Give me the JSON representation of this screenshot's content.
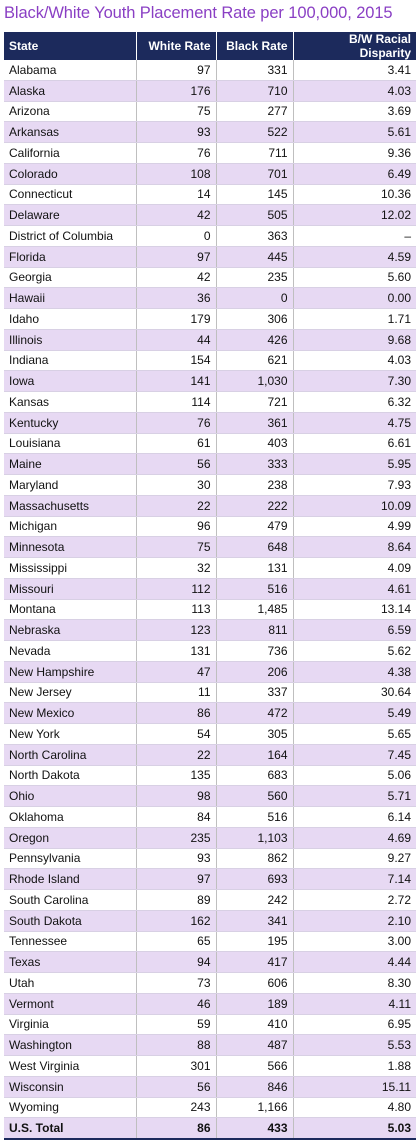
{
  "title": "Black/White Youth Placement Rate per 100,000, 2015",
  "columns": [
    "State",
    "White Rate",
    "Black Rate",
    "B/W Racial Disparity"
  ],
  "rows": [
    [
      "Alabama",
      "97",
      "331",
      "3.41"
    ],
    [
      "Alaska",
      "176",
      "710",
      "4.03"
    ],
    [
      "Arizona",
      "75",
      "277",
      "3.69"
    ],
    [
      "Arkansas",
      "93",
      "522",
      "5.61"
    ],
    [
      "California",
      "76",
      "711",
      "9.36"
    ],
    [
      "Colorado",
      "108",
      "701",
      "6.49"
    ],
    [
      "Connecticut",
      "14",
      "145",
      "10.36"
    ],
    [
      "Delaware",
      "42",
      "505",
      "12.02"
    ],
    [
      "District of Columbia",
      "0",
      "363",
      "–"
    ],
    [
      "Florida",
      "97",
      "445",
      "4.59"
    ],
    [
      "Georgia",
      "42",
      "235",
      "5.60"
    ],
    [
      "Hawaii",
      "36",
      "0",
      "0.00"
    ],
    [
      "Idaho",
      "179",
      "306",
      "1.71"
    ],
    [
      "Illinois",
      "44",
      "426",
      "9.68"
    ],
    [
      "Indiana",
      "154",
      "621",
      "4.03"
    ],
    [
      "Iowa",
      "141",
      "1,030",
      "7.30"
    ],
    [
      "Kansas",
      "114",
      "721",
      "6.32"
    ],
    [
      "Kentucky",
      "76",
      "361",
      "4.75"
    ],
    [
      "Louisiana",
      "61",
      "403",
      "6.61"
    ],
    [
      "Maine",
      "56",
      "333",
      "5.95"
    ],
    [
      "Maryland",
      "30",
      "238",
      "7.93"
    ],
    [
      "Massachusetts",
      "22",
      "222",
      "10.09"
    ],
    [
      "Michigan",
      "96",
      "479",
      "4.99"
    ],
    [
      "Minnesota",
      "75",
      "648",
      "8.64"
    ],
    [
      "Mississippi",
      "32",
      "131",
      "4.09"
    ],
    [
      "Missouri",
      "112",
      "516",
      "4.61"
    ],
    [
      "Montana",
      "113",
      "1,485",
      "13.14"
    ],
    [
      "Nebraska",
      "123",
      "811",
      "6.59"
    ],
    [
      "Nevada",
      "131",
      "736",
      "5.62"
    ],
    [
      "New Hampshire",
      "47",
      "206",
      "4.38"
    ],
    [
      "New Jersey",
      "11",
      "337",
      "30.64"
    ],
    [
      "New Mexico",
      "86",
      "472",
      "5.49"
    ],
    [
      "New York",
      "54",
      "305",
      "5.65"
    ],
    [
      "North Carolina",
      "22",
      "164",
      "7.45"
    ],
    [
      "North Dakota",
      "135",
      "683",
      "5.06"
    ],
    [
      "Ohio",
      "98",
      "560",
      "5.71"
    ],
    [
      "Oklahoma",
      "84",
      "516",
      "6.14"
    ],
    [
      "Oregon",
      "235",
      "1,103",
      "4.69"
    ],
    [
      "Pennsylvania",
      "93",
      "862",
      "9.27"
    ],
    [
      "Rhode Island",
      "97",
      "693",
      "7.14"
    ],
    [
      "South Carolina",
      "89",
      "242",
      "2.72"
    ],
    [
      "South Dakota",
      "162",
      "341",
      "2.10"
    ],
    [
      "Tennessee",
      "65",
      "195",
      "3.00"
    ],
    [
      "Texas",
      "94",
      "417",
      "4.44"
    ],
    [
      "Utah",
      "73",
      "606",
      "8.30"
    ],
    [
      "Vermont",
      "46",
      "189",
      "4.11"
    ],
    [
      "Virginia",
      "59",
      "410",
      "6.95"
    ],
    [
      "Washington",
      "88",
      "487",
      "5.53"
    ],
    [
      "West Virginia",
      "301",
      "566",
      "1.88"
    ],
    [
      "Wisconsin",
      "56",
      "846",
      "15.11"
    ],
    [
      "Wyoming",
      "243",
      "1,166",
      "4.80"
    ]
  ],
  "total": [
    "U.S. Total",
    "86",
    "433",
    "5.03"
  ],
  "colors": {
    "title": "#8a3fc4",
    "header_bg": "#1c2a5c",
    "stripe": "#e7d9f3"
  }
}
